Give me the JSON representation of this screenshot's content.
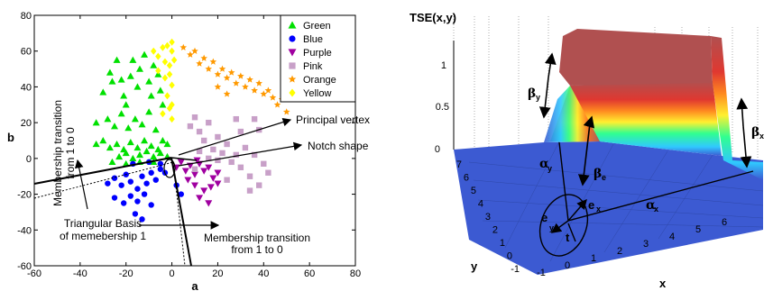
{
  "chart_data": [
    {
      "type": "scatter",
      "xlabel": "a",
      "ylabel": "b",
      "xlim": [
        -60,
        80
      ],
      "ylim": [
        -60,
        80
      ],
      "xticks": [
        "-60",
        "-40",
        "-20",
        "0",
        "20",
        "40",
        "60",
        "80"
      ],
      "yticks": [
        "80",
        "60",
        "40",
        "20",
        "0",
        "-20",
        "-40",
        "-60"
      ],
      "legend_position": "top-right",
      "series": [
        {
          "name": "Green",
          "marker": "triangle-up",
          "color": "#00e000",
          "points": [
            [
              -30,
              37
            ],
            [
              -27,
              48
            ],
            [
              -26,
              43
            ],
            [
              -24,
              55
            ],
            [
              -22,
              44
            ],
            [
              -21,
              35
            ],
            [
              -20,
              30
            ],
            [
              -18,
              46
            ],
            [
              -17,
              55
            ],
            [
              -15,
              40
            ],
            [
              -14,
              50
            ],
            [
              -12,
              58
            ],
            [
              -10,
              43
            ],
            [
              -9,
              35
            ],
            [
              -8,
              52
            ],
            [
              -6,
              47
            ],
            [
              -5,
              38
            ],
            [
              -4,
              30
            ],
            [
              -33,
              20
            ],
            [
              -28,
              22
            ],
            [
              -25,
              18
            ],
            [
              -22,
              25
            ],
            [
              -19,
              17
            ],
            [
              -16,
              22
            ],
            [
              -13,
              19
            ],
            [
              -10,
              26
            ],
            [
              -7,
              16
            ],
            [
              -33,
              8
            ],
            [
              -30,
              10
            ],
            [
              -27,
              6
            ],
            [
              -24,
              8
            ],
            [
              -21,
              5
            ],
            [
              -18,
              9
            ],
            [
              -15,
              6
            ],
            [
              -12,
              10
            ],
            [
              -9,
              7
            ],
            [
              -6,
              5
            ],
            [
              -4,
              10
            ],
            [
              -2,
              8
            ],
            [
              -23,
              1
            ],
            [
              -20,
              3
            ],
            [
              -17,
              0
            ],
            [
              -14,
              2
            ],
            [
              -11,
              4
            ],
            [
              -8,
              1
            ],
            [
              -5,
              3
            ],
            [
              -2,
              1
            ],
            [
              -26,
              -2
            ],
            [
              -20,
              -3
            ],
            [
              -14,
              -2
            ],
            [
              -8,
              -2
            ]
          ]
        },
        {
          "name": "Blue",
          "marker": "circle",
          "color": "#0000ff",
          "points": [
            [
              -28,
              -14
            ],
            [
              -25,
              -11
            ],
            [
              -22,
              -15
            ],
            [
              -20,
              -9
            ],
            [
              -18,
              -13
            ],
            [
              -15,
              -17
            ],
            [
              -13,
              -10
            ],
            [
              -11,
              -14
            ],
            [
              -9,
              -8
            ],
            [
              -7,
              -12
            ],
            [
              -5,
              -6
            ],
            [
              -25,
              -22
            ],
            [
              -21,
              -25
            ],
            [
              -18,
              -21
            ],
            [
              -15,
              -24
            ],
            [
              -12,
              -20
            ],
            [
              -9,
              -26
            ],
            [
              -16,
              -31
            ],
            [
              -13,
              -34
            ],
            [
              -17,
              -3
            ],
            [
              -10,
              -2
            ],
            [
              -5,
              -3
            ],
            [
              -3,
              -8
            ],
            [
              2,
              -15
            ],
            [
              4,
              -20
            ]
          ]
        },
        {
          "name": "Purple",
          "marker": "triangle-down",
          "color": "#a000a0",
          "points": [
            [
              2,
              -5
            ],
            [
              4,
              -2
            ],
            [
              6,
              -7
            ],
            [
              8,
              -4
            ],
            [
              10,
              -9
            ],
            [
              12,
              -3
            ],
            [
              14,
              -7
            ],
            [
              16,
              -5
            ],
            [
              18,
              -11
            ],
            [
              20,
              -8
            ],
            [
              10,
              -15
            ],
            [
              14,
              -18
            ],
            [
              17,
              -16
            ],
            [
              20,
              -14
            ],
            [
              12,
              -22
            ],
            [
              16,
              -25
            ],
            [
              7,
              -12
            ],
            [
              11,
              -1
            ]
          ]
        },
        {
          "name": "Pink",
          "marker": "square",
          "color": "#c8a0c8",
          "points": [
            [
              8,
              18
            ],
            [
              10,
              23
            ],
            [
              12,
              15
            ],
            [
              14,
              10
            ],
            [
              16,
              20
            ],
            [
              18,
              5
            ],
            [
              20,
              12
            ],
            [
              22,
              3
            ],
            [
              24,
              8
            ],
            [
              26,
              -2
            ],
            [
              28,
              2
            ],
            [
              30,
              -5
            ],
            [
              32,
              6
            ],
            [
              34,
              -10
            ],
            [
              36,
              2
            ],
            [
              38,
              -15
            ],
            [
              40,
              -3
            ],
            [
              42,
              -8
            ],
            [
              36,
              22
            ],
            [
              38,
              16
            ],
            [
              30,
              15
            ],
            [
              28,
              22
            ],
            [
              24,
              -12
            ],
            [
              20,
              -1
            ],
            [
              16,
              0
            ],
            [
              12,
              4
            ],
            [
              10,
              -6
            ],
            [
              34,
              -18
            ]
          ]
        },
        {
          "name": "Orange",
          "marker": "star",
          "color": "#ff9900",
          "points": [
            [
              5,
              62
            ],
            [
              8,
              58
            ],
            [
              10,
              60
            ],
            [
              12,
              53
            ],
            [
              14,
              56
            ],
            [
              16,
              50
            ],
            [
              18,
              54
            ],
            [
              20,
              47
            ],
            [
              22,
              50
            ],
            [
              24,
              45
            ],
            [
              26,
              48
            ],
            [
              28,
              42
            ],
            [
              30,
              46
            ],
            [
              32,
              40
            ],
            [
              34,
              44
            ],
            [
              36,
              38
            ],
            [
              38,
              42
            ],
            [
              40,
              36
            ],
            [
              42,
              38
            ],
            [
              44,
              34
            ],
            [
              46,
              30
            ],
            [
              48,
              33
            ],
            [
              50,
              26
            ],
            [
              24,
              36
            ],
            [
              20,
              40
            ]
          ]
        },
        {
          "name": "Yellow",
          "marker": "diamond",
          "color": "#ffff00",
          "points": [
            [
              -8,
              60
            ],
            [
              -6,
              57
            ],
            [
              -4,
              62
            ],
            [
              -3,
              54
            ],
            [
              -2,
              63
            ],
            [
              -1,
              52
            ],
            [
              0,
              65
            ],
            [
              0,
              60
            ],
            [
              1,
              55
            ],
            [
              -1,
              47
            ],
            [
              0,
              41
            ],
            [
              -3,
              45
            ],
            [
              -2,
              35
            ],
            [
              -1,
              28
            ],
            [
              0,
              22
            ],
            [
              -4,
              25
            ],
            [
              -6,
              49
            ],
            [
              0,
              30
            ]
          ]
        }
      ]
    },
    {
      "type": "surface",
      "title": "TSE(x,y)",
      "xlabel": "x",
      "ylabel": "y",
      "zticks": [
        "0",
        "0.5",
        "1"
      ],
      "xticks": [
        "-1",
        "0",
        "1",
        "2",
        "3",
        "4",
        "5",
        "6"
      ],
      "yticks": [
        "7",
        "6",
        "5",
        "4",
        "3",
        "2",
        "1",
        "0",
        "-1"
      ],
      "colormap": "jet"
    }
  ],
  "annotations": {
    "principal_vertex": "Principal vertex",
    "notch_shape": "Notch shape",
    "transition_1_to_0_line1": "Membership transition",
    "transition_1_to_0_line2": "from 1 to 0",
    "triangular_basis_line1": "Triangular Basis",
    "triangular_basis_line2": "of memebership 1",
    "transition_bottom_line1": "Membership transition",
    "transition_bottom_line2": "from 1 to 0"
  },
  "surface_labels": {
    "beta": "β",
    "alpha": "α",
    "sub_y": "y",
    "sub_x": "x",
    "sub_e": "e",
    "e": "e",
    "t": "t"
  },
  "colors": {
    "surface_low": "#3c5ad2",
    "surface_high": "#b05050"
  }
}
